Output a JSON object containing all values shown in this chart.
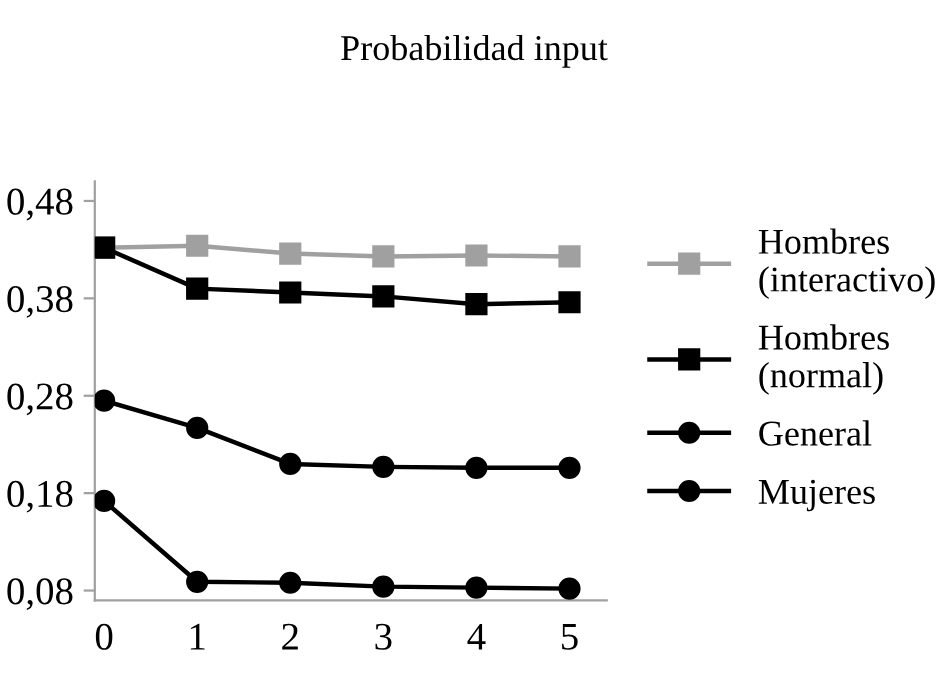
{
  "chart_data": {
    "type": "line",
    "title": "Probabilidad input",
    "x": [
      0,
      1,
      2,
      3,
      4,
      5
    ],
    "xlim": [
      -0.1,
      5.4
    ],
    "xticks": [
      0,
      1,
      2,
      3,
      4,
      5
    ],
    "ylim": [
      0.07,
      0.5
    ],
    "yticks": [
      {
        "value": 0.08,
        "label": "0,08"
      },
      {
        "value": 0.18,
        "label": "0,18"
      },
      {
        "value": 0.28,
        "label": "0,28"
      },
      {
        "value": 0.38,
        "label": "0,38"
      },
      {
        "value": 0.48,
        "label": "0,48"
      }
    ],
    "grid": false,
    "legend": "right",
    "line_style": "solid",
    "series": [
      {
        "name": "Hombres\n(interactivo)",
        "color": "#a0a0a0",
        "marker": "square",
        "values": [
          0.432,
          0.434,
          0.426,
          0.423,
          0.424,
          0.423
        ]
      },
      {
        "name": "Hombres\n(normal)",
        "color": "#000000",
        "marker": "square",
        "values": [
          0.432,
          0.39,
          0.386,
          0.382,
          0.374,
          0.376
        ]
      },
      {
        "name": "General",
        "color": "#000000",
        "marker": "circle",
        "values": [
          0.275,
          0.247,
          0.21,
          0.207,
          0.206,
          0.206
        ]
      },
      {
        "name": "Mujeres",
        "color": "#000000",
        "marker": "circle",
        "values": [
          0.172,
          0.089,
          0.088,
          0.084,
          0.083,
          0.082
        ]
      }
    ]
  }
}
